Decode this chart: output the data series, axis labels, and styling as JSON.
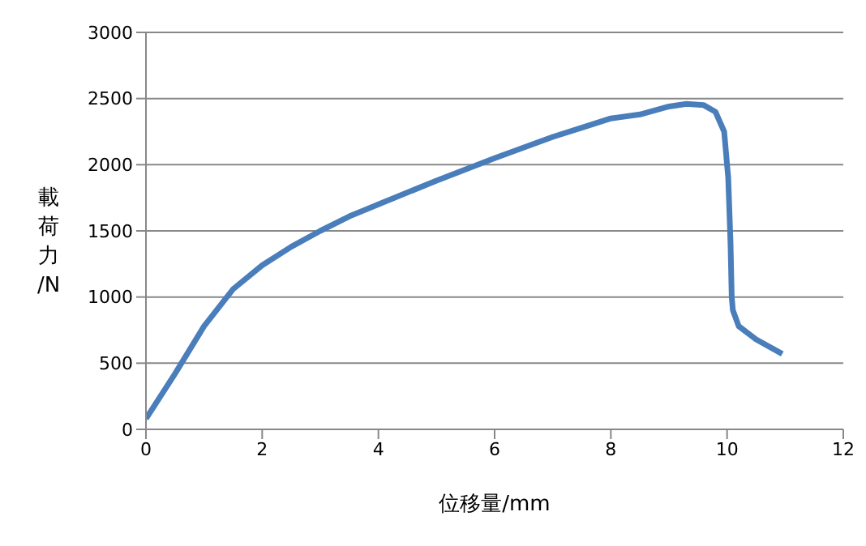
{
  "chart_data": {
    "type": "line",
    "xlabel": "位移量/mm",
    "ylabel": "載荷力/N",
    "xlim": [
      0,
      12
    ],
    "xticks": [
      0,
      2,
      4,
      6,
      8,
      10,
      12
    ],
    "ylim": [
      0,
      3000
    ],
    "yticks": [
      0,
      500,
      1000,
      1500,
      2000,
      2500,
      3000
    ],
    "grid": "y",
    "legend": false,
    "marker": "none",
    "line_style": "solid",
    "series": [
      {
        "color": "#4a7ebb",
        "x": [
          0,
          0.5,
          1,
          1.5,
          2,
          2.5,
          3,
          3.5,
          4,
          5,
          6,
          7,
          7.5,
          8,
          8.5,
          9,
          9.3,
          9.6,
          9.8,
          9.95,
          10.02,
          10.06,
          10.08,
          10.1,
          10.2,
          10.5,
          10.95
        ],
        "values": [
          80,
          420,
          780,
          1060,
          1240,
          1380,
          1500,
          1610,
          1700,
          1880,
          2050,
          2210,
          2280,
          2350,
          2380,
          2440,
          2460,
          2450,
          2400,
          2250,
          1900,
          1400,
          1000,
          900,
          780,
          680,
          570
        ]
      }
    ]
  }
}
